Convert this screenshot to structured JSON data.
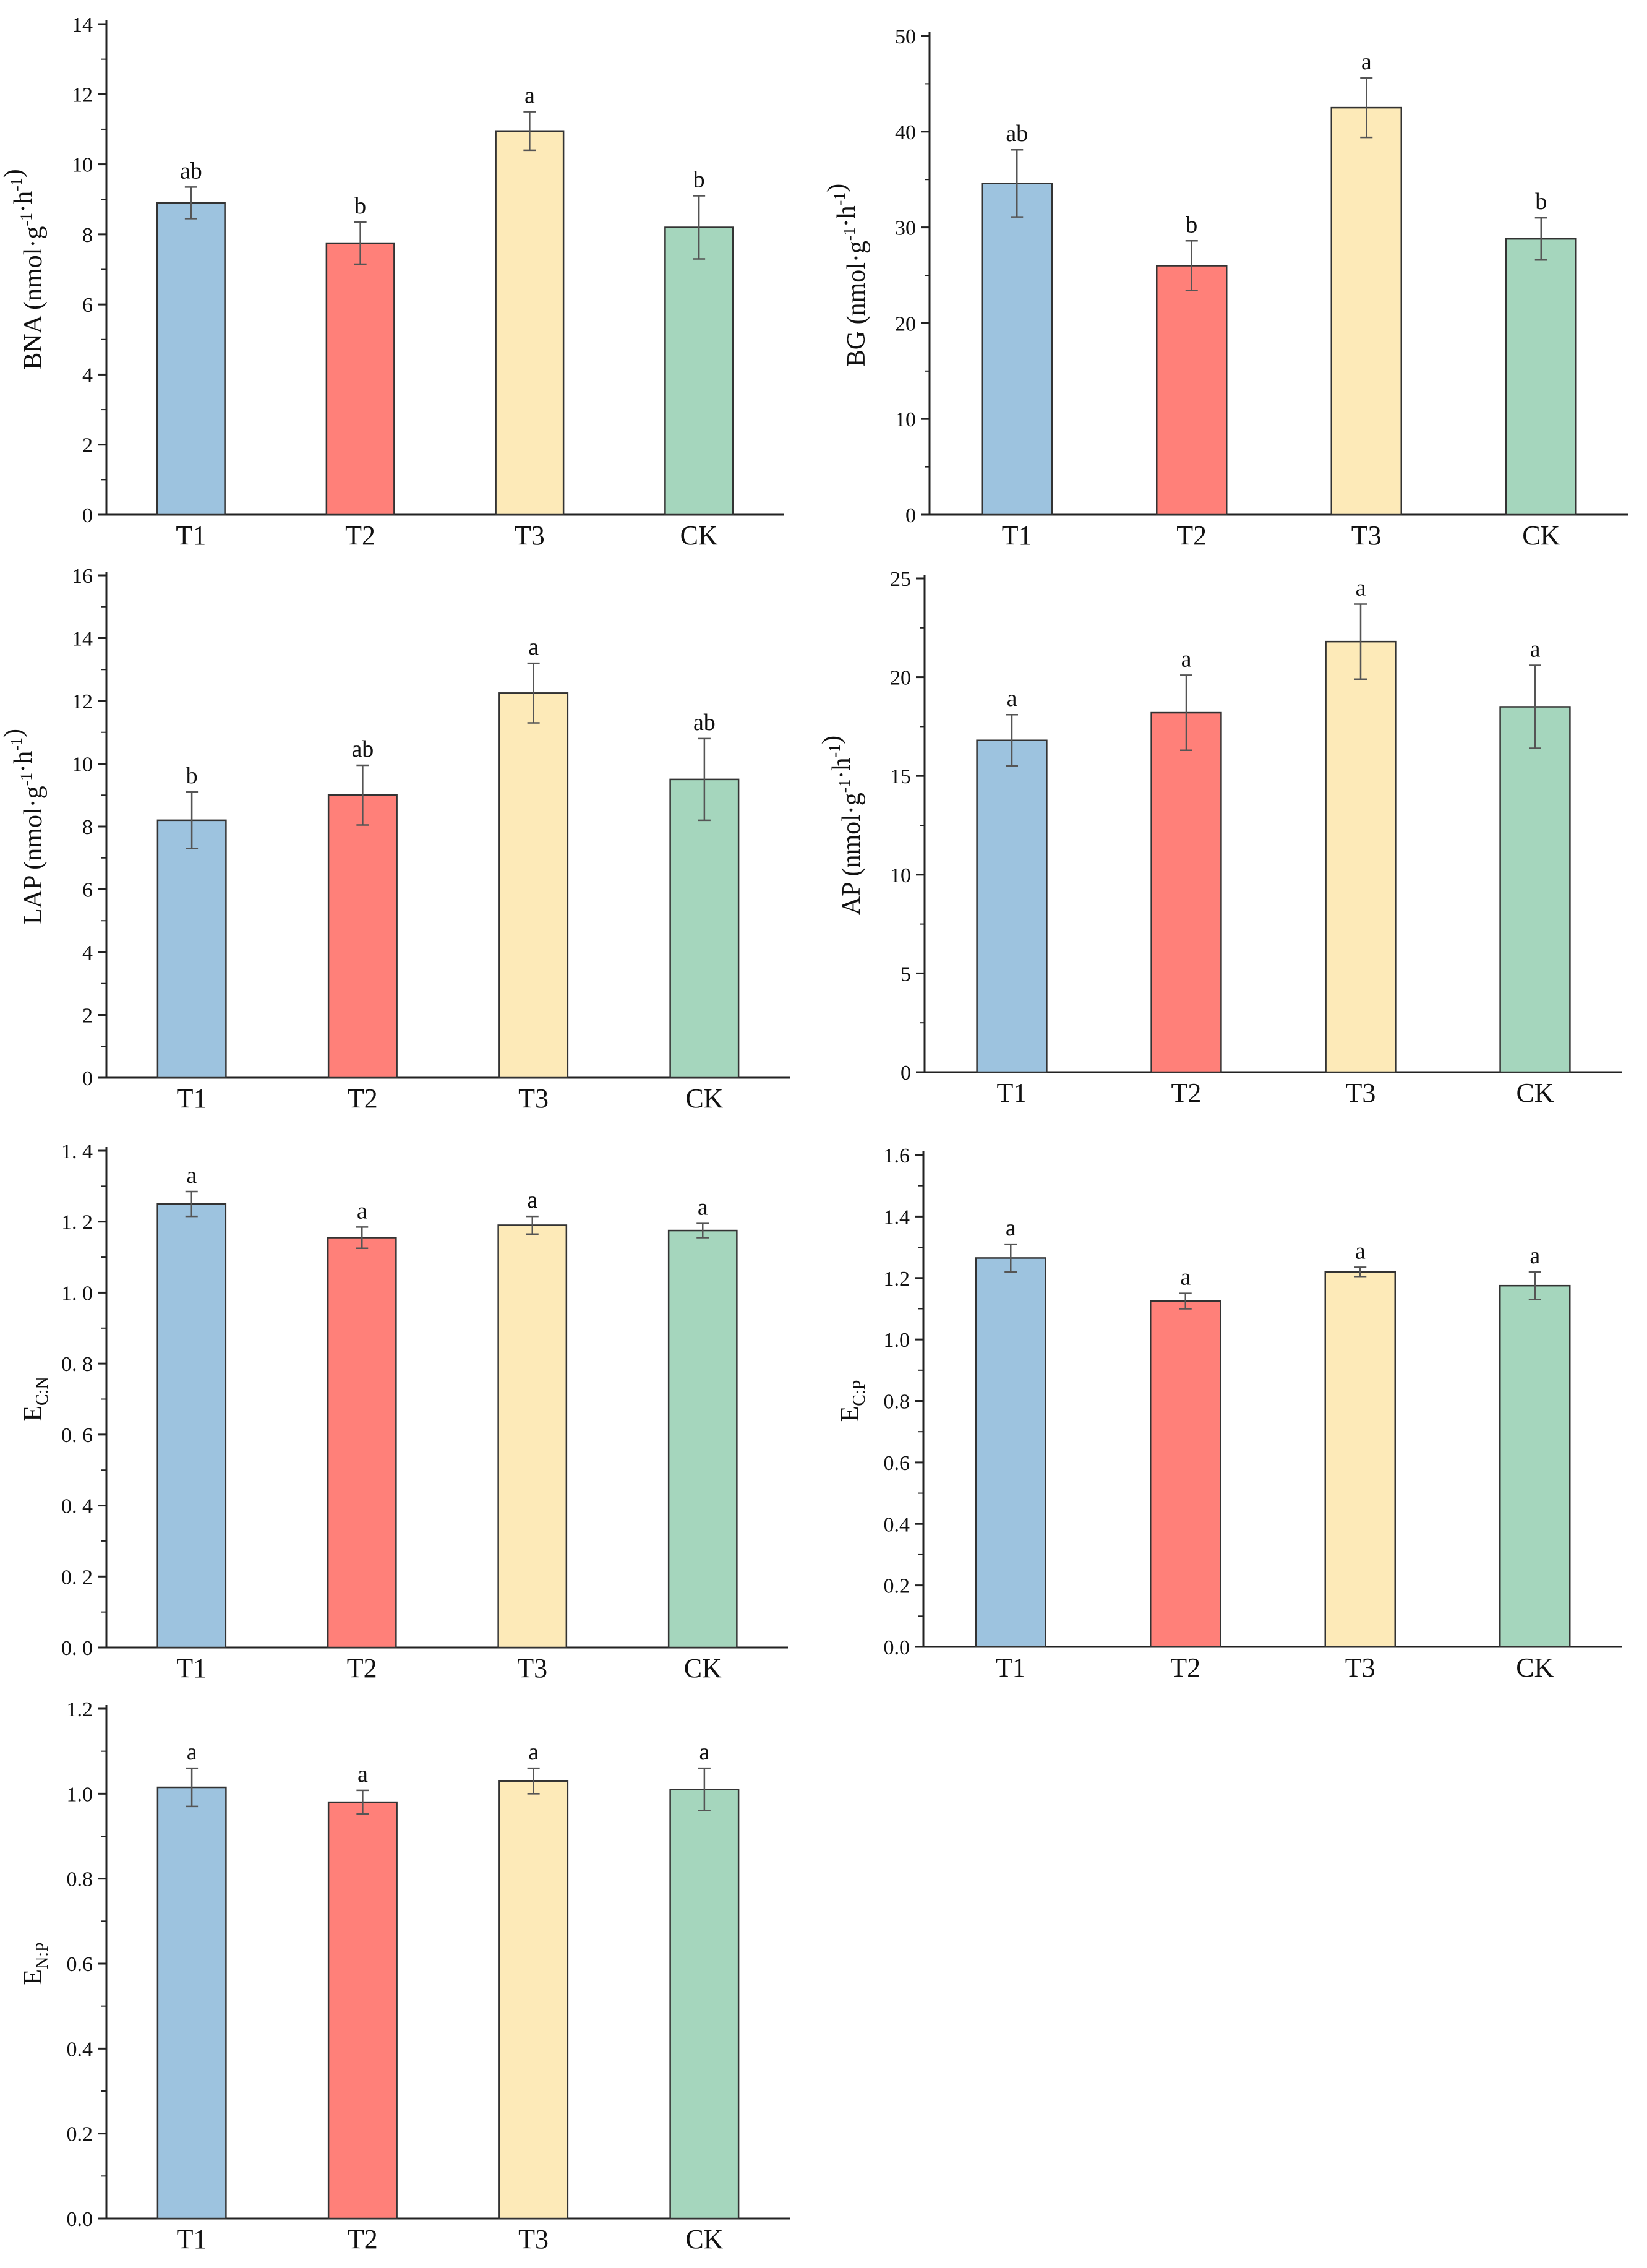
{
  "chart_data": [
    {
      "type": "bar",
      "id": "bna",
      "ylabel": {
        "main": "BNA",
        "unit": "nmol·g-1·h-1"
      },
      "categories": [
        "T1",
        "T2",
        "T3",
        "CK"
      ],
      "values": [
        8.9,
        7.75,
        10.95,
        8.2
      ],
      "errors": [
        0.45,
        0.6,
        0.55,
        0.9
      ],
      "significance": [
        "ab",
        "b",
        "a",
        "b"
      ],
      "ylim": [
        0,
        14
      ],
      "yticks": [
        0,
        2,
        4,
        6,
        8,
        10,
        12,
        14
      ],
      "ytick_labels": [
        "0",
        "2",
        "4",
        "6",
        "8",
        "10",
        "12",
        "14"
      ]
    },
    {
      "type": "bar",
      "id": "bg",
      "ylabel": {
        "main": "BG",
        "unit": "nmol·g-1·h-1"
      },
      "categories": [
        "T1",
        "T2",
        "T3",
        "CK"
      ],
      "values": [
        34.6,
        26.0,
        42.5,
        28.8
      ],
      "errors": [
        3.5,
        2.6,
        3.1,
        2.2
      ],
      "significance": [
        "ab",
        "b",
        "a",
        "b"
      ],
      "ylim": [
        0,
        50
      ],
      "yticks": [
        0,
        10,
        20,
        30,
        40,
        50
      ],
      "ytick_labels": [
        "0",
        "10",
        "20",
        "30",
        "40",
        "50"
      ]
    },
    {
      "type": "bar",
      "id": "lap",
      "ylabel": {
        "main": "LAP",
        "unit": "nmol·g-1·h-1"
      },
      "categories": [
        "T1",
        "T2",
        "T3",
        "CK"
      ],
      "values": [
        8.2,
        9.0,
        12.25,
        9.5
      ],
      "errors": [
        0.9,
        0.95,
        0.95,
        1.3
      ],
      "significance": [
        "b",
        "ab",
        "a",
        "ab"
      ],
      "ylim": [
        0,
        16
      ],
      "yticks": [
        0,
        2,
        4,
        6,
        8,
        10,
        12,
        14,
        16
      ],
      "ytick_labels": [
        "0",
        "2",
        "4",
        "6",
        "8",
        "10",
        "12",
        "14",
        "16"
      ]
    },
    {
      "type": "bar",
      "id": "ap",
      "ylabel": {
        "main": "AP",
        "unit": "nmol·g-1·h-1"
      },
      "categories": [
        "T1",
        "T2",
        "T3",
        "CK"
      ],
      "values": [
        16.8,
        18.2,
        21.8,
        18.5
      ],
      "errors": [
        1.3,
        1.9,
        1.9,
        2.1
      ],
      "significance": [
        "a",
        "a",
        "a",
        "a"
      ],
      "ylim": [
        0,
        25
      ],
      "yticks": [
        0,
        5,
        10,
        15,
        20,
        25
      ],
      "ytick_labels": [
        "0",
        "5",
        "10",
        "15",
        "20",
        "25"
      ]
    },
    {
      "type": "bar",
      "id": "ecn",
      "ylabel": {
        "main": "E",
        "sub": "C:N"
      },
      "categories": [
        "T1",
        "T2",
        "T3",
        "CK"
      ],
      "values": [
        1.25,
        1.155,
        1.19,
        1.175
      ],
      "errors": [
        0.035,
        0.03,
        0.025,
        0.02
      ],
      "significance": [
        "a",
        "a",
        "a",
        "a"
      ],
      "ylim": [
        0,
        1.4
      ],
      "yticks": [
        0,
        0.2,
        0.4,
        0.6,
        0.8,
        1.0,
        1.2,
        1.4
      ],
      "ytick_labels": [
        "0. 0",
        "0. 2",
        "0. 4",
        "0. 6",
        "0. 8",
        "1. 0",
        "1. 2",
        "1. 4"
      ]
    },
    {
      "type": "bar",
      "id": "ecp",
      "ylabel": {
        "main": "E",
        "sub": "C:P"
      },
      "categories": [
        "T1",
        "T2",
        "T3",
        "CK"
      ],
      "values": [
        1.265,
        1.125,
        1.22,
        1.175
      ],
      "errors": [
        0.045,
        0.025,
        0.015,
        0.045
      ],
      "significance": [
        "a",
        "a",
        "a",
        "a"
      ],
      "ylim": [
        0,
        1.6
      ],
      "yticks": [
        0,
        0.2,
        0.4,
        0.6,
        0.8,
        1.0,
        1.2,
        1.4,
        1.6
      ],
      "ytick_labels": [
        "0.0",
        "0.2",
        "0.4",
        "0.6",
        "0.8",
        "1.0",
        "1.2",
        "1.4",
        "1.6"
      ]
    },
    {
      "type": "bar",
      "id": "enp",
      "ylabel": {
        "main": "E",
        "sub": "N:P"
      },
      "categories": [
        "T1",
        "T2",
        "T3",
        "CK"
      ],
      "values": [
        1.015,
        0.98,
        1.03,
        1.01
      ],
      "errors": [
        0.045,
        0.028,
        0.03,
        0.05
      ],
      "significance": [
        "a",
        "a",
        "a",
        "a"
      ],
      "ylim": [
        0,
        1.2
      ],
      "yticks": [
        0,
        0.2,
        0.4,
        0.6,
        0.8,
        1.0,
        1.2
      ],
      "ytick_labels": [
        "0.0",
        "0.2",
        "0.4",
        "0.6",
        "0.8",
        "1.0",
        "1.2"
      ]
    }
  ],
  "colors": {
    "bars": [
      "#9dc3df",
      "#ff8079",
      "#fdeab8",
      "#a5d6bd"
    ],
    "axis": "#222222",
    "error_bar": "#555555"
  }
}
